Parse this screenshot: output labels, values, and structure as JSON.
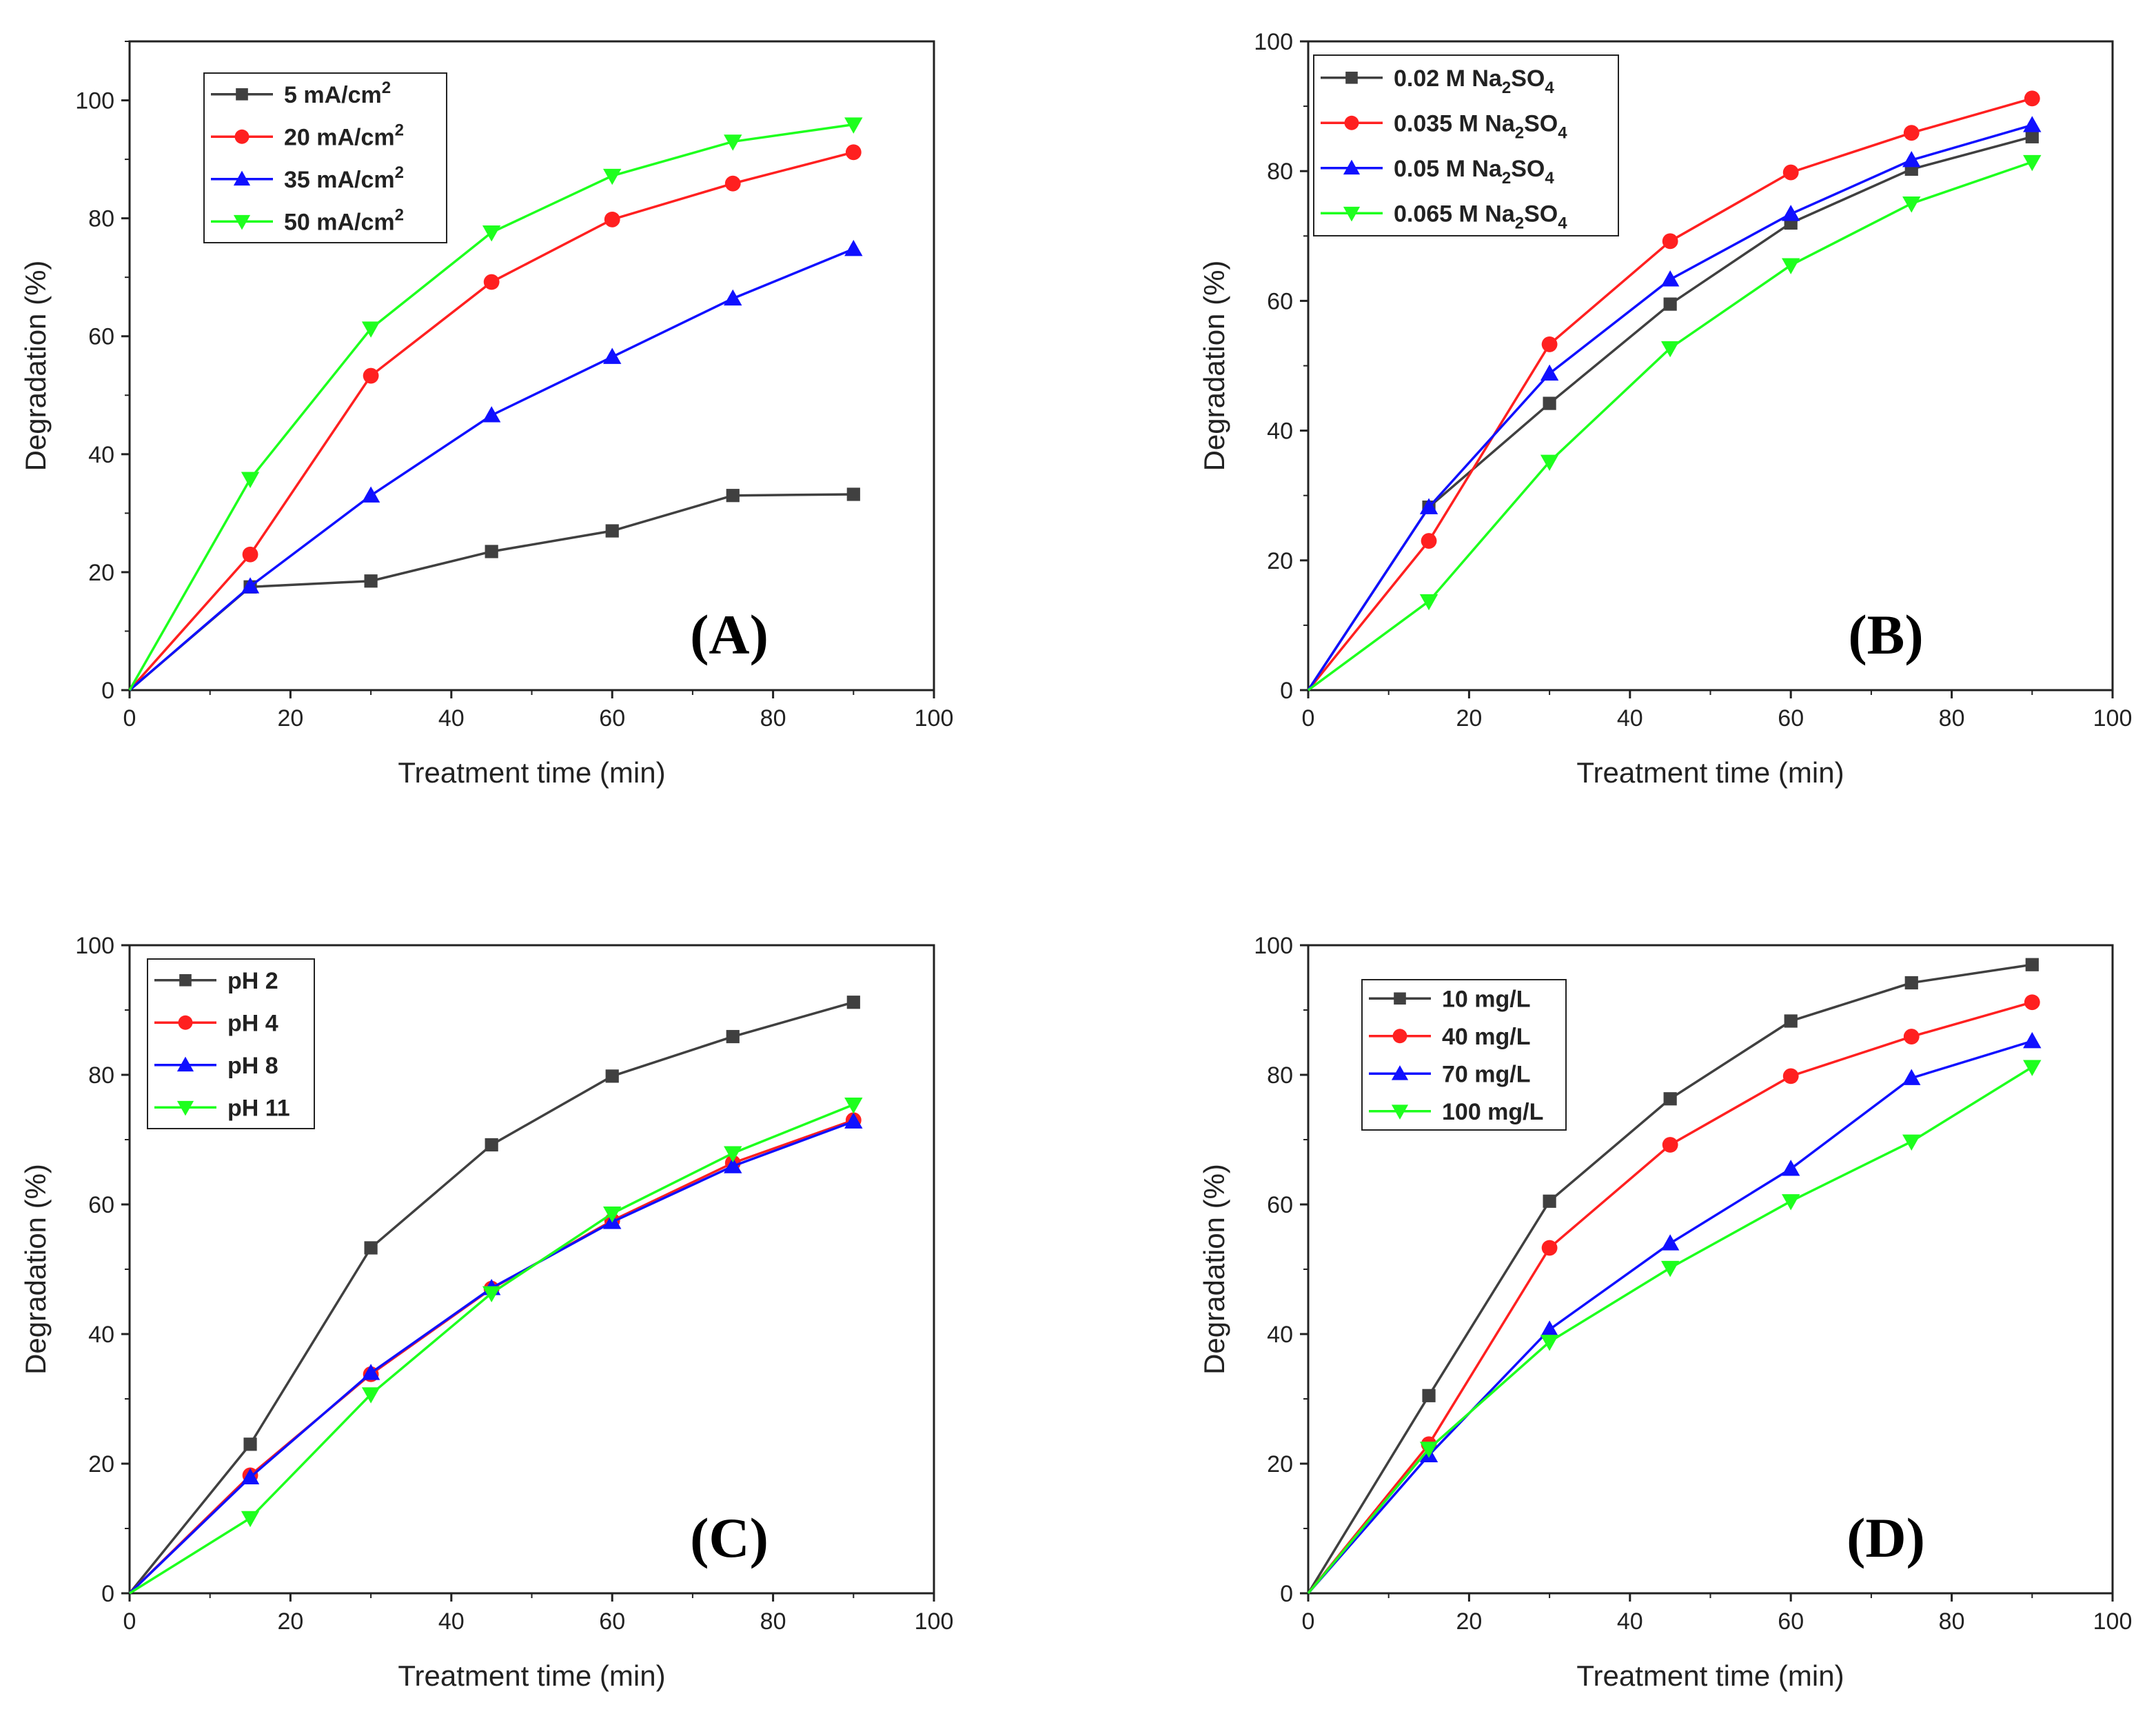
{
  "chart_data": [
    {
      "type": "line",
      "panel_label": "(A)",
      "xlabel": "Treatment time (min)",
      "ylabel": "Degradation (%)",
      "xlim": [
        0,
        100
      ],
      "ylim": [
        0,
        110
      ],
      "xticks": [
        0,
        20,
        40,
        60,
        80,
        100
      ],
      "yticks": [
        0,
        20,
        40,
        60,
        80,
        100
      ],
      "legend_position": "top-left",
      "x": [
        0,
        15,
        30,
        45,
        60,
        75,
        90
      ],
      "series": [
        {
          "name": "5 mA/cm",
          "sup": "2",
          "sub": "",
          "suffix": "",
          "color": "#404040",
          "marker": "square",
          "values": [
            0,
            17.5,
            18.5,
            23.5,
            27,
            33,
            33.2
          ]
        },
        {
          "name": "20 mA/cm",
          "sup": "2",
          "sub": "",
          "suffix": "",
          "color": "#ff2020",
          "marker": "circle",
          "values": [
            0,
            23,
            53.3,
            69.2,
            79.8,
            85.9,
            91.2
          ]
        },
        {
          "name": "35 mA/cm",
          "sup": "2",
          "sub": "",
          "suffix": "",
          "color": "#1010ff",
          "marker": "triangle-up",
          "values": [
            0,
            17.6,
            33,
            46.6,
            56.5,
            66.4,
            74.8
          ]
        },
        {
          "name": "50 mA/cm",
          "sup": "2",
          "sub": "",
          "suffix": "",
          "color": "#1eff1e",
          "marker": "triangle-down",
          "values": [
            0,
            35.8,
            61.3,
            77.6,
            87.2,
            93,
            95.9
          ]
        }
      ]
    },
    {
      "type": "line",
      "panel_label": "(B)",
      "xlabel": "Treatment time (min)",
      "ylabel": "Degradation (%)",
      "xlim": [
        0,
        100
      ],
      "ylim": [
        0,
        100
      ],
      "xticks": [
        0,
        20,
        40,
        60,
        80,
        100
      ],
      "yticks": [
        0,
        20,
        40,
        60,
        80,
        100
      ],
      "legend_position": "top-left",
      "x": [
        0,
        15,
        30,
        45,
        60,
        75,
        90
      ],
      "series": [
        {
          "name": "0.02 M Na",
          "sup": "",
          "sub": "2",
          "suffix": "SO",
          "sub2": "4",
          "color": "#404040",
          "marker": "square",
          "values": [
            0,
            28.2,
            44.2,
            59.5,
            72,
            80.3,
            85.3
          ]
        },
        {
          "name": "0.035 M Na",
          "sup": "",
          "sub": "2",
          "suffix": "SO",
          "sub2": "4",
          "color": "#ff2020",
          "marker": "circle",
          "values": [
            0,
            23,
            53.3,
            69.2,
            79.8,
            85.9,
            91.2
          ]
        },
        {
          "name": "0.05 M Na",
          "sup": "",
          "sub": "2",
          "suffix": "SO",
          "sub2": "4",
          "color": "#1010ff",
          "marker": "triangle-up",
          "values": [
            0,
            28.2,
            48.8,
            63.3,
            73.4,
            81.7,
            87.1
          ]
        },
        {
          "name": "0.065 M Na",
          "sup": "",
          "sub": "2",
          "suffix": "SO",
          "sub2": "4",
          "color": "#1eff1e",
          "marker": "triangle-down",
          "values": [
            0,
            13.7,
            35.2,
            52.7,
            65.5,
            75,
            81.4
          ]
        }
      ]
    },
    {
      "type": "line",
      "panel_label": "(C)",
      "xlabel": "Treatment time (min)",
      "ylabel": "Degradation (%)",
      "xlim": [
        0,
        100
      ],
      "ylim": [
        0,
        100
      ],
      "xticks": [
        0,
        20,
        40,
        60,
        80,
        100
      ],
      "yticks": [
        0,
        20,
        40,
        60,
        80,
        100
      ],
      "legend_position": "top-left",
      "x": [
        0,
        15,
        30,
        45,
        60,
        75,
        90
      ],
      "series": [
        {
          "name": "pH 2",
          "sup": "",
          "sub": "",
          "suffix": "",
          "color": "#404040",
          "marker": "square",
          "values": [
            0,
            23,
            53.3,
            69.2,
            79.8,
            85.9,
            91.2
          ]
        },
        {
          "name": "pH 4",
          "sup": "",
          "sub": "",
          "suffix": "",
          "color": "#ff2020",
          "marker": "circle",
          "values": [
            0,
            18.2,
            33.8,
            47,
            57.5,
            66.4,
            73
          ]
        },
        {
          "name": "pH 8",
          "sup": "",
          "sub": "",
          "suffix": "",
          "color": "#1010ff",
          "marker": "triangle-up",
          "values": [
            0,
            17.9,
            34,
            47.1,
            57.3,
            65.9,
            72.8
          ]
        },
        {
          "name": "pH 11",
          "sup": "",
          "sub": "",
          "suffix": "",
          "color": "#1eff1e",
          "marker": "triangle-down",
          "values": [
            0,
            11.6,
            30.7,
            46.3,
            58.6,
            67.9,
            75.4
          ]
        }
      ]
    },
    {
      "type": "line",
      "panel_label": "(D)",
      "xlabel": "Treatment time (min)",
      "ylabel": "Degradation (%)",
      "xlim": [
        0,
        100
      ],
      "ylim": [
        0,
        100
      ],
      "xticks": [
        0,
        20,
        40,
        60,
        80,
        100
      ],
      "yticks": [
        0,
        20,
        40,
        60,
        80,
        100
      ],
      "legend_position": "top-left",
      "x": [
        0,
        15,
        30,
        45,
        60,
        75,
        90
      ],
      "series": [
        {
          "name": "10 mg/L",
          "sup": "",
          "sub": "",
          "suffix": "",
          "color": "#404040",
          "marker": "square",
          "values": [
            0,
            30.5,
            60.5,
            76.3,
            88.3,
            94.2,
            97
          ]
        },
        {
          "name": "40 mg/L",
          "sup": "",
          "sub": "",
          "suffix": "",
          "color": "#ff2020",
          "marker": "circle",
          "values": [
            0,
            23,
            53.3,
            69.2,
            79.8,
            85.9,
            91.2
          ]
        },
        {
          "name": "70 mg/L",
          "sup": "",
          "sub": "",
          "suffix": "",
          "color": "#1010ff",
          "marker": "triangle-up",
          "values": [
            0,
            21.3,
            40.7,
            54,
            65.5,
            79.5,
            85.2
          ]
        },
        {
          "name": "100 mg/L",
          "sup": "",
          "sub": "",
          "suffix": "",
          "color": "#1eff1e",
          "marker": "triangle-down",
          "values": [
            0,
            22.3,
            38.8,
            50.2,
            60.5,
            69.7,
            81.2
          ]
        }
      ]
    }
  ]
}
